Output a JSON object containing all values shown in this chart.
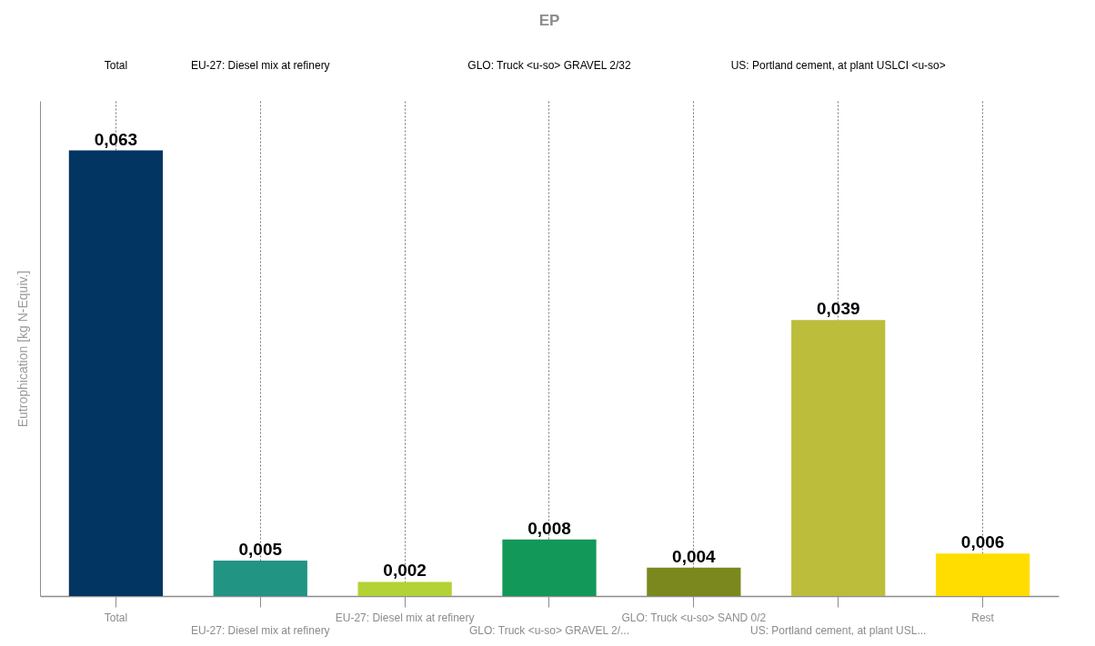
{
  "chart_data": {
    "type": "bar",
    "title": "EP",
    "ylabel": "Eutrophication [kg N-Equiv.]",
    "categories": [
      "Total",
      "EU-27: Diesel mix at refinery",
      "EU-27: Diesel mix at refinery",
      "GLO: Truck <u-so> GRAVEL 2/...",
      "GLO: Truck <u-so> SAND 0/2",
      "US: Portland cement, at plant USL...",
      "Rest"
    ],
    "values": [
      0.063,
      0.005,
      0.002,
      0.008,
      0.004,
      0.039,
      0.006
    ],
    "colors": [
      "#023562",
      "#219484",
      "#b3d235",
      "#129858",
      "#7a881e",
      "#bdbd3c",
      "#ffdd00"
    ],
    "value_labels": [
      "0,063",
      "0,005",
      "0,002",
      "0,008",
      "0,004",
      "0,039",
      "0,006"
    ],
    "ylim": [
      0,
      0.07
    ],
    "tick_labels": "x",
    "grid": "x",
    "annotations": [
      "Total",
      "EU-27: Diesel mix at refinery",
      "GLO: Truck <u-so> GRAVEL 2/32",
      "US: Portland cement, at plant USLCI <u-so>"
    ]
  }
}
